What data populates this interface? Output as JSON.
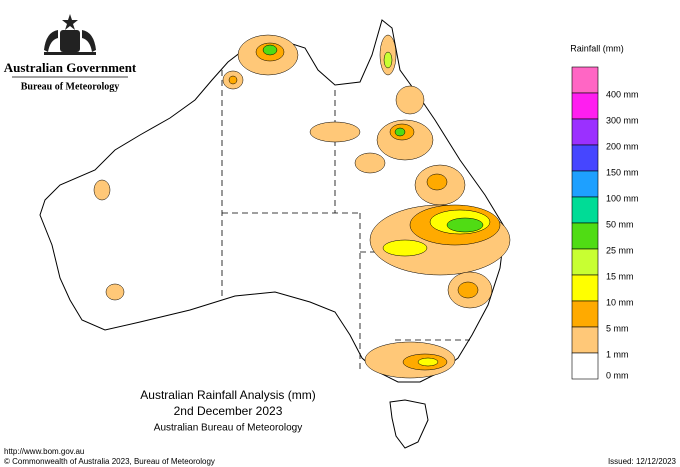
{
  "header": {
    "government": "Australian Government",
    "agency": "Bureau of Meteorology"
  },
  "legend": {
    "title": "Rainfall (mm)",
    "items": [
      {
        "label": "400 mm",
        "color": "#ff66c4"
      },
      {
        "label": "300 mm",
        "color": "#ff1ef0"
      },
      {
        "label": "200 mm",
        "color": "#9b30ff"
      },
      {
        "label": "150 mm",
        "color": "#4646ff"
      },
      {
        "label": "100 mm",
        "color": "#1ea0ff"
      },
      {
        "label": "50 mm",
        "color": "#00dc96"
      },
      {
        "label": "25 mm",
        "color": "#50dc14"
      },
      {
        "label": "15 mm",
        "color": "#c8ff32"
      },
      {
        "label": "10 mm",
        "color": "#ffff00"
      },
      {
        "label": "5 mm",
        "color": "#ffaa00"
      },
      {
        "label": "1 mm",
        "color": "#ffc878"
      },
      {
        "label": "0 mm",
        "color": "#ffffff"
      }
    ]
  },
  "title": {
    "lines": [
      "Australian Rainfall Analysis (mm)",
      "2nd December 2023",
      "Australian Bureau of Meteorology"
    ]
  },
  "footer": {
    "url": "http://www.bom.gov.au",
    "copyright": "© Commonwealth of Australia 2023, Bureau of Meteorology",
    "issued": "Issued: 12/12/2023"
  }
}
